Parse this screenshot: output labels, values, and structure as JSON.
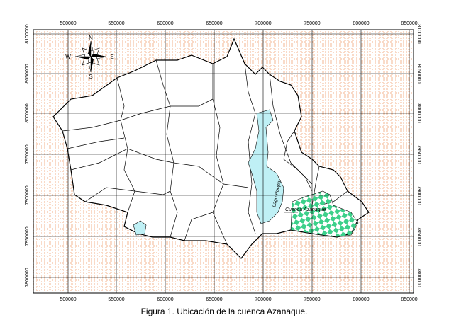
{
  "map": {
    "x_labels_top": [
      500000,
      550000,
      600000,
      650000,
      700000,
      750000,
      800000,
      850000
    ],
    "x_labels_bottom": [
      500000,
      550000,
      600000,
      650000,
      700000,
      750000,
      800000,
      850000
    ],
    "y_labels_left": [
      8100000,
      8050000,
      8000000,
      7950000,
      7900000,
      7850000,
      7800000
    ],
    "y_labels_right": [
      8100000,
      8050000,
      8000000,
      7950000,
      7900000,
      7850000,
      7800000
    ],
    "compass": {
      "n": "N",
      "s": "S",
      "e": "E",
      "w": "W"
    },
    "labels": {
      "lake": "Lago Poopo",
      "basin": "Cuenca Azanaque"
    }
  },
  "caption": "Figura 1. Ubicación de la cuenca Azanaque."
}
